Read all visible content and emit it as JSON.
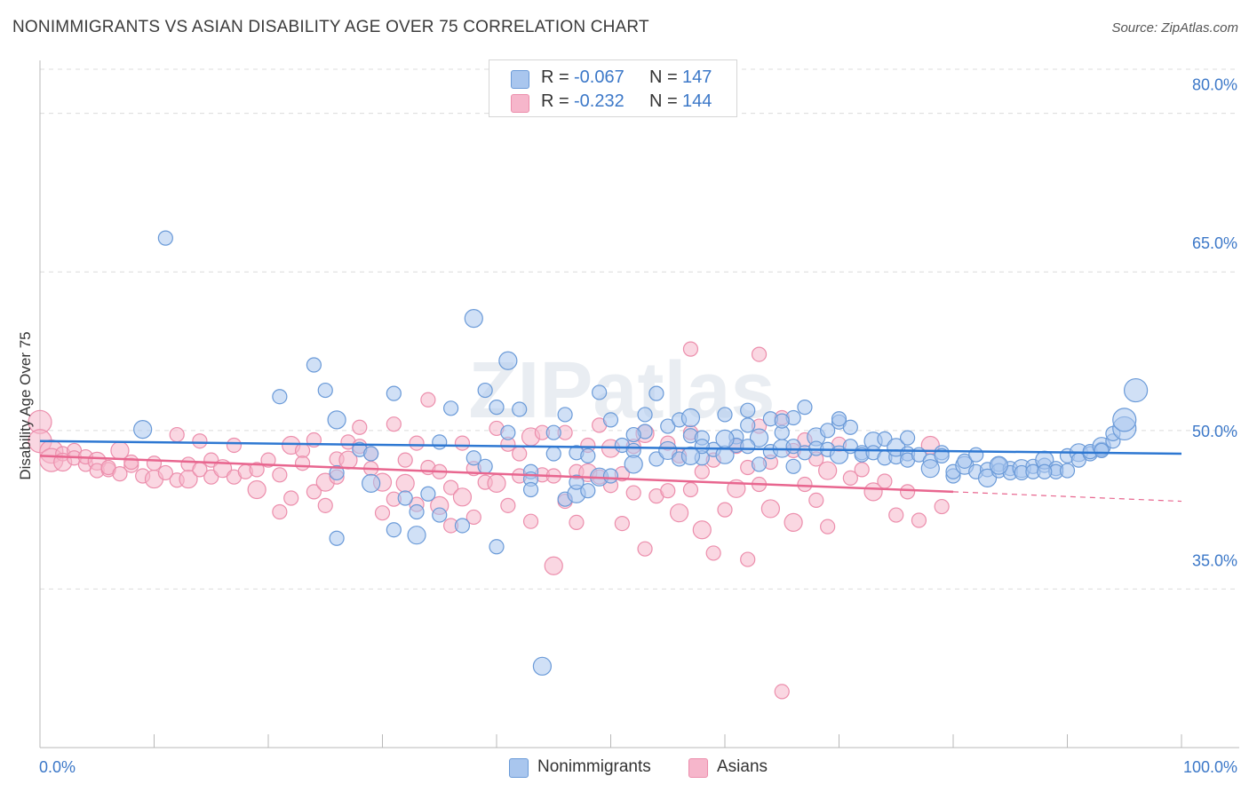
{
  "title": "NONIMMIGRANTS VS ASIAN DISABILITY AGE OVER 75 CORRELATION CHART",
  "source": "Source: ZipAtlas.com",
  "watermark": "ZIPatlas",
  "legend": {
    "rows": [
      {
        "r_label": "R =",
        "r_value": "-0.067",
        "n_label": "N =",
        "n_value": "147"
      },
      {
        "r_label": "R =",
        "r_value": "-0.232",
        "n_label": "N =",
        "n_value": "144"
      }
    ]
  },
  "colors": {
    "blue_fill": "#a9c6ee",
    "blue_stroke": "#6a9ad8",
    "blue_line": "#2e78d2",
    "pink_fill": "#f6b6cb",
    "pink_stroke": "#ec8eac",
    "pink_line": "#e8668f",
    "axis_text": "#3c78c8",
    "grid": "#dcdcdc"
  },
  "chart_data": {
    "type": "scatter",
    "title": "NONIMMIGRANTS VS ASIAN DISABILITY AGE OVER 75 CORRELATION CHART",
    "xlabel": "",
    "ylabel": "Disability Age Over 75",
    "xlim": [
      0,
      100
    ],
    "ylim": [
      20,
      84
    ],
    "x_tick_labels": [
      "0.0%",
      "100.0%"
    ],
    "y_ticks": [
      35,
      50,
      65,
      80
    ],
    "y_tick_labels": [
      "35.0%",
      "50.0%",
      "65.0%",
      "80.0%"
    ],
    "grid": true,
    "legend_position": "bottom",
    "series": [
      {
        "name": "Nonimmigrants",
        "color": "#a9c6ee",
        "trend": {
          "x": [
            0,
            100
          ],
          "y": [
            49.0,
            47.8
          ]
        },
        "points": [
          [
            9,
            50.1
          ],
          [
            11,
            68.2
          ],
          [
            21,
            53.2
          ],
          [
            24,
            56.2
          ],
          [
            25,
            53.8
          ],
          [
            26,
            51.0
          ],
          [
            26,
            46.0
          ],
          [
            26,
            39.8
          ],
          [
            28,
            48.2
          ],
          [
            29,
            47.8
          ],
          [
            29,
            45.0
          ],
          [
            31,
            40.6
          ],
          [
            31,
            53.5
          ],
          [
            32,
            43.6
          ],
          [
            33,
            42.3
          ],
          [
            33,
            40.1
          ],
          [
            34,
            44.0
          ],
          [
            35,
            42.0
          ],
          [
            36,
            52.1
          ],
          [
            37,
            41.0
          ],
          [
            38,
            60.6
          ],
          [
            38,
            47.4
          ],
          [
            39,
            53.8
          ],
          [
            40,
            39.0
          ],
          [
            40,
            52.2
          ],
          [
            41,
            56.6
          ],
          [
            41,
            49.8
          ],
          [
            42,
            52.0
          ],
          [
            43,
            46.1
          ],
          [
            43,
            45.4
          ],
          [
            44,
            27.7
          ],
          [
            45,
            49.8
          ],
          [
            45,
            47.8
          ],
          [
            46,
            51.5
          ],
          [
            46,
            43.5
          ],
          [
            47,
            44.0
          ],
          [
            47,
            47.9
          ],
          [
            48,
            44.3
          ],
          [
            48,
            47.6
          ],
          [
            49,
            53.6
          ],
          [
            49,
            45.6
          ],
          [
            50,
            51.0
          ],
          [
            50,
            45.7
          ],
          [
            51,
            48.6
          ],
          [
            52,
            48.1
          ],
          [
            52,
            46.8
          ],
          [
            53,
            51.5
          ],
          [
            53,
            49.9
          ],
          [
            54,
            53.5
          ],
          [
            54,
            47.3
          ],
          [
            55,
            48.1
          ],
          [
            55,
            50.4
          ],
          [
            56,
            51.0
          ],
          [
            56,
            47.3
          ],
          [
            57,
            49.5
          ],
          [
            57,
            51.2
          ],
          [
            58,
            47.4
          ],
          [
            58,
            49.3
          ],
          [
            59,
            48.2
          ],
          [
            60,
            51.5
          ],
          [
            60,
            47.7
          ],
          [
            61,
            49.4
          ],
          [
            61,
            48.6
          ],
          [
            62,
            51.9
          ],
          [
            62,
            50.5
          ],
          [
            63,
            49.3
          ],
          [
            63,
            46.8
          ],
          [
            64,
            51.1
          ],
          [
            64,
            48.0
          ],
          [
            65,
            49.8
          ],
          [
            65,
            48.3
          ],
          [
            66,
            51.2
          ],
          [
            66,
            48.5
          ],
          [
            67,
            47.9
          ],
          [
            67,
            52.2
          ],
          [
            68,
            49.4
          ],
          [
            68,
            48.3
          ],
          [
            69,
            50.0
          ],
          [
            69,
            48.2
          ],
          [
            70,
            50.8
          ],
          [
            70,
            47.7
          ],
          [
            71,
            50.3
          ],
          [
            71,
            48.5
          ],
          [
            72,
            47.9
          ],
          [
            72,
            47.7
          ],
          [
            73,
            49.0
          ],
          [
            73,
            47.9
          ],
          [
            74,
            47.4
          ],
          [
            74,
            49.2
          ],
          [
            75,
            47.5
          ],
          [
            75,
            48.4
          ],
          [
            76,
            47.8
          ],
          [
            76,
            47.2
          ],
          [
            77,
            47.7
          ],
          [
            78,
            47.1
          ],
          [
            78,
            46.4
          ],
          [
            79,
            47.9
          ],
          [
            79,
            47.6
          ],
          [
            80,
            45.7
          ],
          [
            80,
            46.1
          ],
          [
            81,
            46.7
          ],
          [
            81,
            47.1
          ],
          [
            82,
            46.1
          ],
          [
            82,
            47.7
          ],
          [
            83,
            46.3
          ],
          [
            83,
            45.5
          ],
          [
            84,
            46.8
          ],
          [
            84,
            46.2
          ],
          [
            85,
            46.4
          ],
          [
            85,
            46.0
          ],
          [
            86,
            46.4
          ],
          [
            86,
            46.0
          ],
          [
            87,
            46.6
          ],
          [
            87,
            46.1
          ],
          [
            88,
            46.7
          ],
          [
            88,
            47.2
          ],
          [
            89,
            46.4
          ],
          [
            89,
            46.1
          ],
          [
            90,
            47.6
          ],
          [
            90,
            46.2
          ],
          [
            91,
            47.9
          ],
          [
            91,
            47.2
          ],
          [
            92,
            47.8
          ],
          [
            92,
            48.0
          ],
          [
            93,
            48.2
          ],
          [
            93,
            48.5
          ],
          [
            94,
            49.0
          ],
          [
            94,
            49.7
          ],
          [
            95,
            50.2
          ],
          [
            95,
            51.0
          ],
          [
            96,
            53.8
          ],
          [
            58,
            48.5
          ],
          [
            52,
            49.6
          ],
          [
            47,
            45.1
          ],
          [
            62,
            48.5
          ],
          [
            57,
            47.6
          ],
          [
            65,
            50.9
          ],
          [
            70,
            51.1
          ],
          [
            35,
            48.9
          ],
          [
            39,
            46.6
          ],
          [
            60,
            49.2
          ],
          [
            66,
            46.6
          ],
          [
            76,
            49.3
          ],
          [
            88,
            46.1
          ],
          [
            93,
            48.1
          ],
          [
            84,
            46.7
          ],
          [
            43,
            44.4
          ]
        ]
      },
      {
        "name": "Asians",
        "color": "#f6b6cb",
        "trend": {
          "x": [
            0,
            80
          ],
          "y": [
            47.6,
            44.2
          ]
        },
        "trend_dashed": {
          "x": [
            80,
            100
          ],
          "y": [
            44.2,
            43.3
          ]
        },
        "points": [
          [
            0,
            50.8
          ],
          [
            0,
            49.0
          ],
          [
            1,
            48.0
          ],
          [
            1,
            47.2
          ],
          [
            2,
            47.8
          ],
          [
            2,
            47.0
          ],
          [
            3,
            48.1
          ],
          [
            3,
            47.4
          ],
          [
            4,
            46.8
          ],
          [
            4,
            47.5
          ],
          [
            5,
            47.1
          ],
          [
            5,
            46.2
          ],
          [
            6,
            46.3
          ],
          [
            6,
            46.5
          ],
          [
            7,
            45.9
          ],
          [
            7,
            48.1
          ],
          [
            8,
            46.7
          ],
          [
            8,
            47.0
          ],
          [
            9,
            45.7
          ],
          [
            10,
            46.9
          ],
          [
            10,
            45.4
          ],
          [
            11,
            46.0
          ],
          [
            12,
            49.6
          ],
          [
            12,
            45.3
          ],
          [
            13,
            46.8
          ],
          [
            13,
            45.4
          ],
          [
            14,
            46.3
          ],
          [
            14,
            49.0
          ],
          [
            15,
            47.2
          ],
          [
            15,
            45.6
          ],
          [
            16,
            46.4
          ],
          [
            17,
            45.6
          ],
          [
            17,
            48.6
          ],
          [
            18,
            46.1
          ],
          [
            19,
            46.3
          ],
          [
            19,
            44.4
          ],
          [
            20,
            47.2
          ],
          [
            21,
            45.8
          ],
          [
            21,
            42.3
          ],
          [
            22,
            43.6
          ],
          [
            22,
            48.6
          ],
          [
            23,
            48.1
          ],
          [
            23,
            46.9
          ],
          [
            24,
            49.1
          ],
          [
            24,
            44.2
          ],
          [
            25,
            45.1
          ],
          [
            25,
            42.9
          ],
          [
            26,
            47.3
          ],
          [
            26,
            45.6
          ],
          [
            27,
            48.9
          ],
          [
            27,
            47.2
          ],
          [
            28,
            50.3
          ],
          [
            28,
            48.5
          ],
          [
            29,
            47.8
          ],
          [
            29,
            46.4
          ],
          [
            30,
            45.1
          ],
          [
            30,
            42.2
          ],
          [
            31,
            50.6
          ],
          [
            31,
            43.5
          ],
          [
            32,
            47.2
          ],
          [
            32,
            45.0
          ],
          [
            33,
            43.0
          ],
          [
            33,
            48.8
          ],
          [
            34,
            52.9
          ],
          [
            34,
            46.5
          ],
          [
            35,
            42.9
          ],
          [
            35,
            46.1
          ],
          [
            36,
            44.6
          ],
          [
            36,
            41.0
          ],
          [
            37,
            48.8
          ],
          [
            37,
            43.7
          ],
          [
            38,
            46.4
          ],
          [
            38,
            41.8
          ],
          [
            39,
            45.1
          ],
          [
            40,
            50.2
          ],
          [
            40,
            45.0
          ],
          [
            41,
            48.7
          ],
          [
            41,
            42.9
          ],
          [
            42,
            45.7
          ],
          [
            42,
            47.8
          ],
          [
            43,
            49.4
          ],
          [
            43,
            41.4
          ],
          [
            44,
            45.8
          ],
          [
            44,
            49.8
          ],
          [
            45,
            45.7
          ],
          [
            45,
            37.2
          ],
          [
            46,
            43.3
          ],
          [
            46,
            49.8
          ],
          [
            47,
            46.1
          ],
          [
            47,
            41.3
          ],
          [
            48,
            46.0
          ],
          [
            48,
            48.6
          ],
          [
            49,
            45.6
          ],
          [
            49,
            50.5
          ],
          [
            50,
            44.8
          ],
          [
            50,
            48.3
          ],
          [
            51,
            45.9
          ],
          [
            51,
            41.2
          ],
          [
            52,
            48.5
          ],
          [
            52,
            44.1
          ],
          [
            53,
            49.7
          ],
          [
            53,
            38.8
          ],
          [
            54,
            43.8
          ],
          [
            55,
            44.3
          ],
          [
            55,
            48.8
          ],
          [
            56,
            42.2
          ],
          [
            56,
            47.6
          ],
          [
            57,
            44.4
          ],
          [
            57,
            49.8
          ],
          [
            58,
            46.1
          ],
          [
            58,
            40.6
          ],
          [
            59,
            47.2
          ],
          [
            59,
            38.4
          ],
          [
            60,
            42.5
          ],
          [
            61,
            48.5
          ],
          [
            61,
            44.5
          ],
          [
            62,
            46.5
          ],
          [
            62,
            37.8
          ],
          [
            63,
            44.9
          ],
          [
            63,
            50.4
          ],
          [
            64,
            42.6
          ],
          [
            64,
            47.0
          ],
          [
            65,
            51.2
          ],
          [
            65,
            25.3
          ],
          [
            66,
            48.1
          ],
          [
            66,
            41.3
          ],
          [
            67,
            49.1
          ],
          [
            67,
            44.9
          ],
          [
            68,
            47.3
          ],
          [
            68,
            43.4
          ],
          [
            69,
            46.2
          ],
          [
            69,
            40.9
          ],
          [
            70,
            48.7
          ],
          [
            71,
            45.5
          ],
          [
            72,
            46.3
          ],
          [
            73,
            44.2
          ],
          [
            74,
            45.2
          ],
          [
            75,
            42.0
          ],
          [
            76,
            44.2
          ],
          [
            77,
            41.5
          ],
          [
            78,
            48.6
          ],
          [
            79,
            42.8
          ],
          [
            63,
            57.2
          ],
          [
            57,
            57.7
          ]
        ]
      }
    ]
  }
}
